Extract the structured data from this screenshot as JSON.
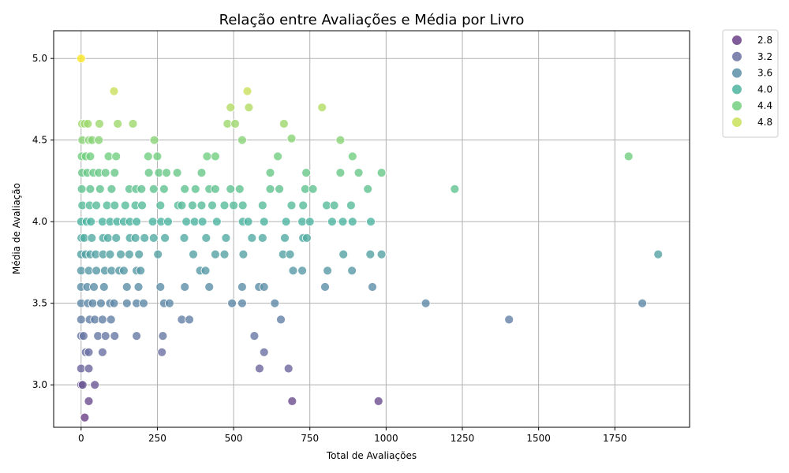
{
  "chart_data": {
    "type": "scatter",
    "title": "Relação entre Avaliações e Média por Livro",
    "xlabel": "Total de Avaliações",
    "ylabel": "Média de Avaliação",
    "xlim": [
      -90,
      1995
    ],
    "ylim": [
      2.74,
      5.17
    ],
    "xticks": [
      0,
      250,
      500,
      750,
      1000,
      1250,
      1500,
      1750
    ],
    "xtick_labels": [
      "0",
      "250",
      "500",
      "750",
      "1000",
      "1250",
      "1500",
      "1750"
    ],
    "yticks": [
      3.0,
      3.5,
      4.0,
      4.5,
      5.0
    ],
    "ytick_labels": [
      "3.0",
      "3.5",
      "4.0",
      "4.5",
      "5.0"
    ],
    "grid": true,
    "legend_position": "outside-top-right",
    "colormap": "viridis",
    "color_range": [
      2.8,
      5.0
    ],
    "legend": [
      {
        "label": "2.8",
        "color": "#6a3f86"
      },
      {
        "label": "3.2",
        "color": "#6b71a3"
      },
      {
        "label": "3.6",
        "color": "#5b8fa8"
      },
      {
        "label": "4.0",
        "color": "#4db4a0"
      },
      {
        "label": "4.4",
        "color": "#72cf7f"
      },
      {
        "label": "4.8",
        "color": "#c9e05a"
      }
    ],
    "points": [
      {
        "x": 0,
        "y": 5.0
      },
      {
        "x": 108,
        "y": 4.8
      },
      {
        "x": 545,
        "y": 4.8
      },
      {
        "x": 490,
        "y": 4.7
      },
      {
        "x": 550,
        "y": 4.7
      },
      {
        "x": 790,
        "y": 4.7
      },
      {
        "x": 3,
        "y": 4.6
      },
      {
        "x": 12,
        "y": 4.6
      },
      {
        "x": 22,
        "y": 4.6
      },
      {
        "x": 60,
        "y": 4.6
      },
      {
        "x": 120,
        "y": 4.6
      },
      {
        "x": 170,
        "y": 4.6
      },
      {
        "x": 480,
        "y": 4.6
      },
      {
        "x": 505,
        "y": 4.6
      },
      {
        "x": 665,
        "y": 4.6
      },
      {
        "x": 690,
        "y": 4.51
      },
      {
        "x": 4,
        "y": 4.5
      },
      {
        "x": 26,
        "y": 4.5
      },
      {
        "x": 36,
        "y": 4.5
      },
      {
        "x": 58,
        "y": 4.5
      },
      {
        "x": 240,
        "y": 4.5
      },
      {
        "x": 528,
        "y": 4.5
      },
      {
        "x": 850,
        "y": 4.5
      },
      {
        "x": 2,
        "y": 4.4
      },
      {
        "x": 15,
        "y": 4.4
      },
      {
        "x": 30,
        "y": 4.4
      },
      {
        "x": 90,
        "y": 4.4
      },
      {
        "x": 115,
        "y": 4.4
      },
      {
        "x": 220,
        "y": 4.4
      },
      {
        "x": 250,
        "y": 4.4
      },
      {
        "x": 413,
        "y": 4.4
      },
      {
        "x": 440,
        "y": 4.4
      },
      {
        "x": 645,
        "y": 4.4
      },
      {
        "x": 890,
        "y": 4.4
      },
      {
        "x": 1795,
        "y": 4.4
      },
      {
        "x": 3,
        "y": 4.3
      },
      {
        "x": 20,
        "y": 4.3
      },
      {
        "x": 40,
        "y": 4.3
      },
      {
        "x": 58,
        "y": 4.3
      },
      {
        "x": 80,
        "y": 4.3
      },
      {
        "x": 110,
        "y": 4.3
      },
      {
        "x": 222,
        "y": 4.3
      },
      {
        "x": 255,
        "y": 4.3
      },
      {
        "x": 280,
        "y": 4.3
      },
      {
        "x": 315,
        "y": 4.3
      },
      {
        "x": 395,
        "y": 4.3
      },
      {
        "x": 620,
        "y": 4.3
      },
      {
        "x": 738,
        "y": 4.3
      },
      {
        "x": 850,
        "y": 4.3
      },
      {
        "x": 910,
        "y": 4.3
      },
      {
        "x": 985,
        "y": 4.3
      },
      {
        "x": 2,
        "y": 4.2
      },
      {
        "x": 30,
        "y": 4.2
      },
      {
        "x": 62,
        "y": 4.2
      },
      {
        "x": 100,
        "y": 4.2
      },
      {
        "x": 158,
        "y": 4.2
      },
      {
        "x": 180,
        "y": 4.2
      },
      {
        "x": 198,
        "y": 4.2
      },
      {
        "x": 238,
        "y": 4.2
      },
      {
        "x": 272,
        "y": 4.2
      },
      {
        "x": 340,
        "y": 4.2
      },
      {
        "x": 375,
        "y": 4.2
      },
      {
        "x": 420,
        "y": 4.2
      },
      {
        "x": 440,
        "y": 4.2
      },
      {
        "x": 490,
        "y": 4.2
      },
      {
        "x": 520,
        "y": 4.2
      },
      {
        "x": 620,
        "y": 4.2
      },
      {
        "x": 650,
        "y": 4.2
      },
      {
        "x": 735,
        "y": 4.2
      },
      {
        "x": 760,
        "y": 4.2
      },
      {
        "x": 940,
        "y": 4.2
      },
      {
        "x": 1225,
        "y": 4.2
      },
      {
        "x": 4,
        "y": 4.1
      },
      {
        "x": 28,
        "y": 4.1
      },
      {
        "x": 50,
        "y": 4.1
      },
      {
        "x": 85,
        "y": 4.1
      },
      {
        "x": 110,
        "y": 4.1
      },
      {
        "x": 145,
        "y": 4.1
      },
      {
        "x": 178,
        "y": 4.1
      },
      {
        "x": 200,
        "y": 4.1
      },
      {
        "x": 260,
        "y": 4.1
      },
      {
        "x": 318,
        "y": 4.1
      },
      {
        "x": 330,
        "y": 4.1
      },
      {
        "x": 365,
        "y": 4.1
      },
      {
        "x": 395,
        "y": 4.1
      },
      {
        "x": 430,
        "y": 4.1
      },
      {
        "x": 470,
        "y": 4.1
      },
      {
        "x": 500,
        "y": 4.1
      },
      {
        "x": 530,
        "y": 4.1
      },
      {
        "x": 595,
        "y": 4.1
      },
      {
        "x": 690,
        "y": 4.1
      },
      {
        "x": 728,
        "y": 4.1
      },
      {
        "x": 805,
        "y": 4.1
      },
      {
        "x": 830,
        "y": 4.1
      },
      {
        "x": 885,
        "y": 4.1
      },
      {
        "x": 0,
        "y": 4.0
      },
      {
        "x": 18,
        "y": 4.0
      },
      {
        "x": 32,
        "y": 4.0
      },
      {
        "x": 70,
        "y": 4.0
      },
      {
        "x": 95,
        "y": 4.0
      },
      {
        "x": 118,
        "y": 4.0
      },
      {
        "x": 140,
        "y": 4.0
      },
      {
        "x": 160,
        "y": 4.0
      },
      {
        "x": 182,
        "y": 4.0
      },
      {
        "x": 235,
        "y": 4.0
      },
      {
        "x": 262,
        "y": 4.0
      },
      {
        "x": 285,
        "y": 4.0
      },
      {
        "x": 345,
        "y": 4.0
      },
      {
        "x": 372,
        "y": 4.0
      },
      {
        "x": 398,
        "y": 4.0
      },
      {
        "x": 445,
        "y": 4.0
      },
      {
        "x": 530,
        "y": 4.0
      },
      {
        "x": 548,
        "y": 4.0
      },
      {
        "x": 600,
        "y": 4.0
      },
      {
        "x": 672,
        "y": 4.0
      },
      {
        "x": 725,
        "y": 4.0
      },
      {
        "x": 750,
        "y": 4.0
      },
      {
        "x": 823,
        "y": 4.0
      },
      {
        "x": 858,
        "y": 4.0
      },
      {
        "x": 890,
        "y": 4.0
      },
      {
        "x": 950,
        "y": 4.0
      },
      {
        "x": 1,
        "y": 3.9
      },
      {
        "x": 10,
        "y": 3.9
      },
      {
        "x": 35,
        "y": 3.9
      },
      {
        "x": 72,
        "y": 3.9
      },
      {
        "x": 88,
        "y": 3.9
      },
      {
        "x": 115,
        "y": 3.9
      },
      {
        "x": 160,
        "y": 3.9
      },
      {
        "x": 178,
        "y": 3.9
      },
      {
        "x": 208,
        "y": 3.9
      },
      {
        "x": 238,
        "y": 3.9
      },
      {
        "x": 275,
        "y": 3.9
      },
      {
        "x": 338,
        "y": 3.9
      },
      {
        "x": 410,
        "y": 3.9
      },
      {
        "x": 475,
        "y": 3.9
      },
      {
        "x": 560,
        "y": 3.9
      },
      {
        "x": 595,
        "y": 3.9
      },
      {
        "x": 668,
        "y": 3.9
      },
      {
        "x": 728,
        "y": 3.9
      },
      {
        "x": 740,
        "y": 3.9
      },
      {
        "x": 0,
        "y": 3.8
      },
      {
        "x": 15,
        "y": 3.8
      },
      {
        "x": 30,
        "y": 3.8
      },
      {
        "x": 48,
        "y": 3.8
      },
      {
        "x": 72,
        "y": 3.8
      },
      {
        "x": 95,
        "y": 3.8
      },
      {
        "x": 130,
        "y": 3.8
      },
      {
        "x": 158,
        "y": 3.8
      },
      {
        "x": 190,
        "y": 3.8
      },
      {
        "x": 252,
        "y": 3.8
      },
      {
        "x": 368,
        "y": 3.8
      },
      {
        "x": 440,
        "y": 3.8
      },
      {
        "x": 470,
        "y": 3.8
      },
      {
        "x": 532,
        "y": 3.8
      },
      {
        "x": 662,
        "y": 3.8
      },
      {
        "x": 685,
        "y": 3.8
      },
      {
        "x": 860,
        "y": 3.8
      },
      {
        "x": 948,
        "y": 3.8
      },
      {
        "x": 985,
        "y": 3.8
      },
      {
        "x": 1892,
        "y": 3.8
      },
      {
        "x": 0,
        "y": 3.7
      },
      {
        "x": 25,
        "y": 3.7
      },
      {
        "x": 50,
        "y": 3.7
      },
      {
        "x": 78,
        "y": 3.7
      },
      {
        "x": 100,
        "y": 3.7
      },
      {
        "x": 125,
        "y": 3.7
      },
      {
        "x": 140,
        "y": 3.7
      },
      {
        "x": 182,
        "y": 3.7
      },
      {
        "x": 195,
        "y": 3.7
      },
      {
        "x": 390,
        "y": 3.7
      },
      {
        "x": 408,
        "y": 3.7
      },
      {
        "x": 695,
        "y": 3.7
      },
      {
        "x": 725,
        "y": 3.7
      },
      {
        "x": 808,
        "y": 3.7
      },
      {
        "x": 888,
        "y": 3.7
      },
      {
        "x": 0,
        "y": 3.6
      },
      {
        "x": 20,
        "y": 3.6
      },
      {
        "x": 42,
        "y": 3.6
      },
      {
        "x": 75,
        "y": 3.6
      },
      {
        "x": 150,
        "y": 3.6
      },
      {
        "x": 188,
        "y": 3.6
      },
      {
        "x": 260,
        "y": 3.6
      },
      {
        "x": 340,
        "y": 3.6
      },
      {
        "x": 420,
        "y": 3.6
      },
      {
        "x": 528,
        "y": 3.6
      },
      {
        "x": 583,
        "y": 3.6
      },
      {
        "x": 600,
        "y": 3.6
      },
      {
        "x": 800,
        "y": 3.6
      },
      {
        "x": 955,
        "y": 3.6
      },
      {
        "x": 0,
        "y": 3.5
      },
      {
        "x": 22,
        "y": 3.5
      },
      {
        "x": 38,
        "y": 3.5
      },
      {
        "x": 65,
        "y": 3.5
      },
      {
        "x": 95,
        "y": 3.5
      },
      {
        "x": 108,
        "y": 3.5
      },
      {
        "x": 150,
        "y": 3.5
      },
      {
        "x": 182,
        "y": 3.5
      },
      {
        "x": 205,
        "y": 3.5
      },
      {
        "x": 272,
        "y": 3.5
      },
      {
        "x": 290,
        "y": 3.5
      },
      {
        "x": 495,
        "y": 3.5
      },
      {
        "x": 528,
        "y": 3.5
      },
      {
        "x": 635,
        "y": 3.5
      },
      {
        "x": 1130,
        "y": 3.5
      },
      {
        "x": 1840,
        "y": 3.5
      },
      {
        "x": 0,
        "y": 3.4
      },
      {
        "x": 28,
        "y": 3.4
      },
      {
        "x": 45,
        "y": 3.4
      },
      {
        "x": 70,
        "y": 3.4
      },
      {
        "x": 98,
        "y": 3.4
      },
      {
        "x": 330,
        "y": 3.4
      },
      {
        "x": 355,
        "y": 3.4
      },
      {
        "x": 655,
        "y": 3.4
      },
      {
        "x": 1403,
        "y": 3.4
      },
      {
        "x": 0,
        "y": 3.3
      },
      {
        "x": 8,
        "y": 3.3
      },
      {
        "x": 55,
        "y": 3.3
      },
      {
        "x": 80,
        "y": 3.3
      },
      {
        "x": 110,
        "y": 3.3
      },
      {
        "x": 182,
        "y": 3.3
      },
      {
        "x": 268,
        "y": 3.3
      },
      {
        "x": 568,
        "y": 3.3
      },
      {
        "x": 15,
        "y": 3.2
      },
      {
        "x": 25,
        "y": 3.2
      },
      {
        "x": 70,
        "y": 3.2
      },
      {
        "x": 265,
        "y": 3.2
      },
      {
        "x": 600,
        "y": 3.2
      },
      {
        "x": 0,
        "y": 3.1
      },
      {
        "x": 25,
        "y": 3.1
      },
      {
        "x": 585,
        "y": 3.1
      },
      {
        "x": 680,
        "y": 3.1
      },
      {
        "x": 0,
        "y": 3.0
      },
      {
        "x": 5,
        "y": 3.0
      },
      {
        "x": 45,
        "y": 3.0
      },
      {
        "x": 25,
        "y": 2.9
      },
      {
        "x": 692,
        "y": 2.9
      },
      {
        "x": 975,
        "y": 2.9
      },
      {
        "x": 12,
        "y": 2.8
      }
    ]
  }
}
